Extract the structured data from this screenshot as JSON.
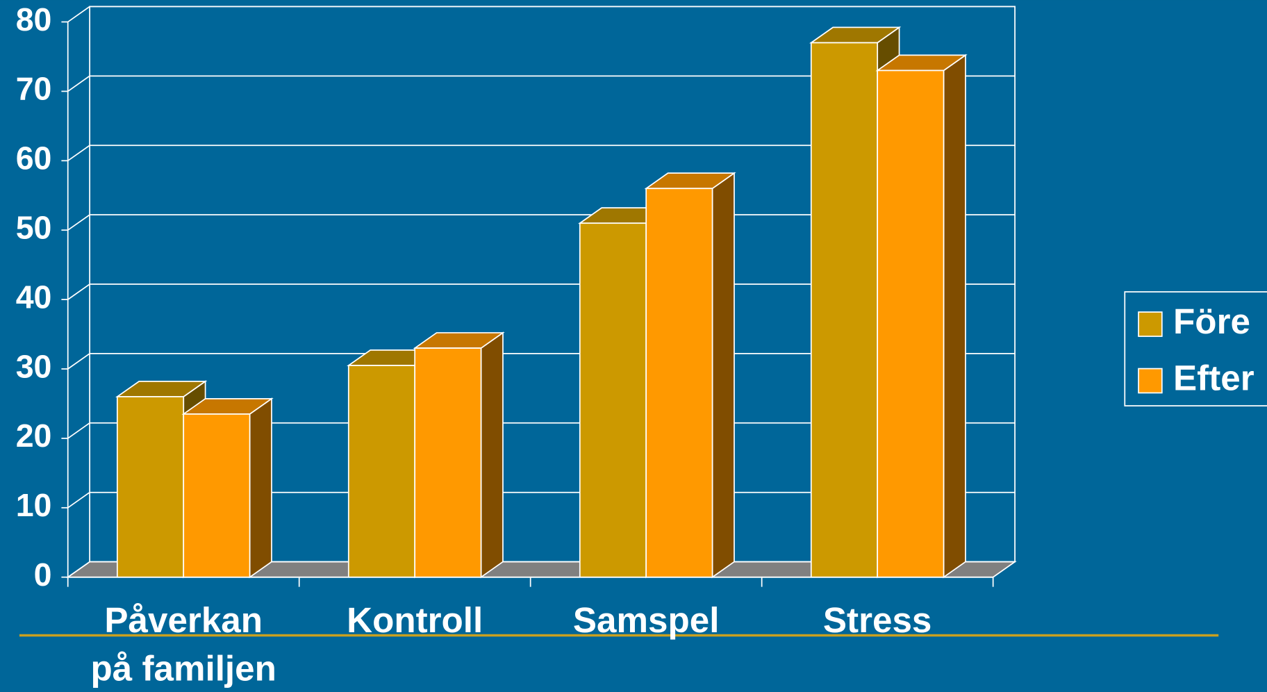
{
  "chart_data": {
    "type": "bar3d",
    "categories": [
      "Påverkan\npå familjen",
      "Kontroll",
      "Samspel",
      "Stress"
    ],
    "series": [
      {
        "name": "Före",
        "color": "#cc9900",
        "values": [
          26,
          30.5,
          51,
          77
        ]
      },
      {
        "name": "Efter",
        "color": "#ff9900",
        "values": [
          23.5,
          33,
          56,
          73
        ]
      }
    ],
    "ylim": [
      0,
      80
    ],
    "yticks": [
      0,
      10,
      20,
      30,
      40,
      50,
      60,
      70,
      80
    ],
    "grid": true,
    "legend": "right"
  }
}
